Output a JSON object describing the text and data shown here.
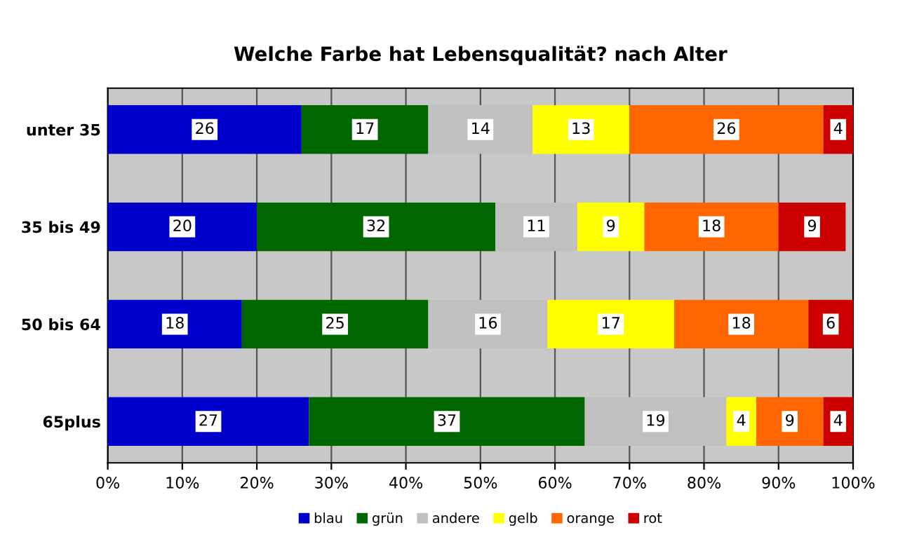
{
  "chart_data": {
    "type": "bar",
    "orientation": "horizontal",
    "stacked": true,
    "title": "Welche Farbe hat Lebensqualität? nach Alter",
    "categories": [
      "unter 35",
      "35 bis 49",
      "50 bis 64",
      "65plus"
    ],
    "series": [
      {
        "name": "blau",
        "color": "#0000cc",
        "values": [
          26,
          20,
          18,
          27
        ]
      },
      {
        "name": "grün",
        "color": "#006600",
        "values": [
          17,
          32,
          25,
          37
        ]
      },
      {
        "name": "andere",
        "color": "#c0c0c0",
        "values": [
          14,
          11,
          16,
          19
        ]
      },
      {
        "name": "gelb",
        "color": "#ffff00",
        "values": [
          13,
          9,
          17,
          4
        ]
      },
      {
        "name": "orange",
        "color": "#ff6600",
        "values": [
          26,
          18,
          18,
          9
        ]
      },
      {
        "name": "rot",
        "color": "#cc0000",
        "values": [
          4,
          9,
          6,
          4
        ]
      }
    ],
    "xlim": [
      0,
      100
    ],
    "xticks": [
      {
        "value": 0,
        "label": "0%"
      },
      {
        "value": 10,
        "label": "10%"
      },
      {
        "value": 20,
        "label": "20%"
      },
      {
        "value": 30,
        "label": "30%"
      },
      {
        "value": 40,
        "label": "40%"
      },
      {
        "value": 50,
        "label": "50%"
      },
      {
        "value": 60,
        "label": "60%"
      },
      {
        "value": 70,
        "label": "70%"
      },
      {
        "value": 80,
        "label": "80%"
      },
      {
        "value": 90,
        "label": "90%"
      },
      {
        "value": 100,
        "label": "100%"
      }
    ],
    "grid": "x",
    "legend": "bottom",
    "data_labels": true
  }
}
